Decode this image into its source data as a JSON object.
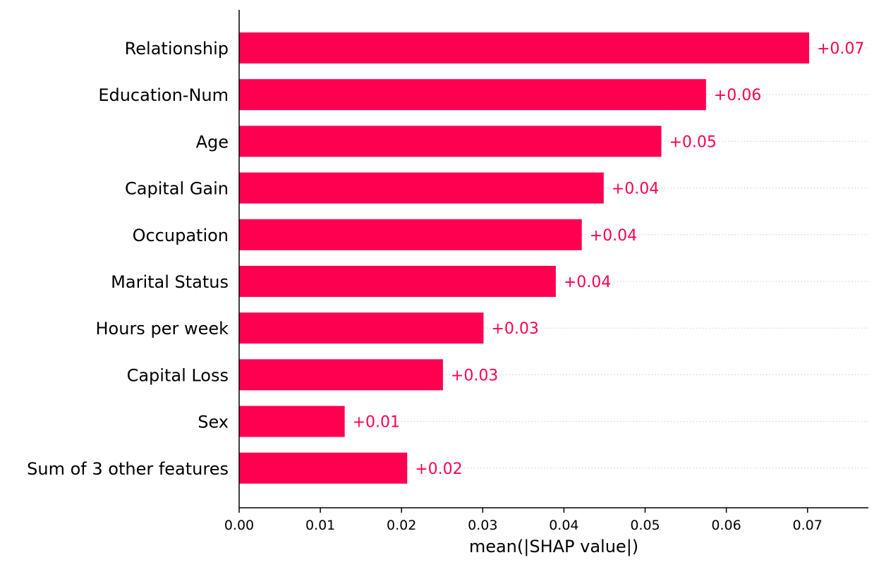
{
  "chart_data": {
    "type": "bar",
    "orientation": "horizontal",
    "title": "",
    "xlabel": "mean(|SHAP value|)",
    "ylabel": "",
    "xlim": [
      0,
      0.0775
    ],
    "grid": "dotted row guides",
    "bar_color": "#ff0051",
    "label_color": "#ff0051",
    "categories": [
      "Relationship",
      "Education-Num",
      "Age",
      "Capital Gain",
      "Occupation",
      "Marital Status",
      "Hours per week",
      "Capital Loss",
      "Sex",
      "Sum of 3 other features"
    ],
    "values": [
      0.0702,
      0.0575,
      0.052,
      0.0449,
      0.0422,
      0.039,
      0.0301,
      0.0251,
      0.013,
      0.0207
    ],
    "value_labels": [
      "+0.07",
      "+0.06",
      "+0.05",
      "+0.04",
      "+0.04",
      "+0.04",
      "+0.03",
      "+0.03",
      "+0.01",
      "+0.02"
    ],
    "x_ticks": [
      0,
      0.01,
      0.02,
      0.03,
      0.04,
      0.05,
      0.06,
      0.07
    ],
    "x_tick_labels": [
      "0.00",
      "0.01",
      "0.02",
      "0.03",
      "0.04",
      "0.05",
      "0.06",
      "0.07"
    ]
  }
}
